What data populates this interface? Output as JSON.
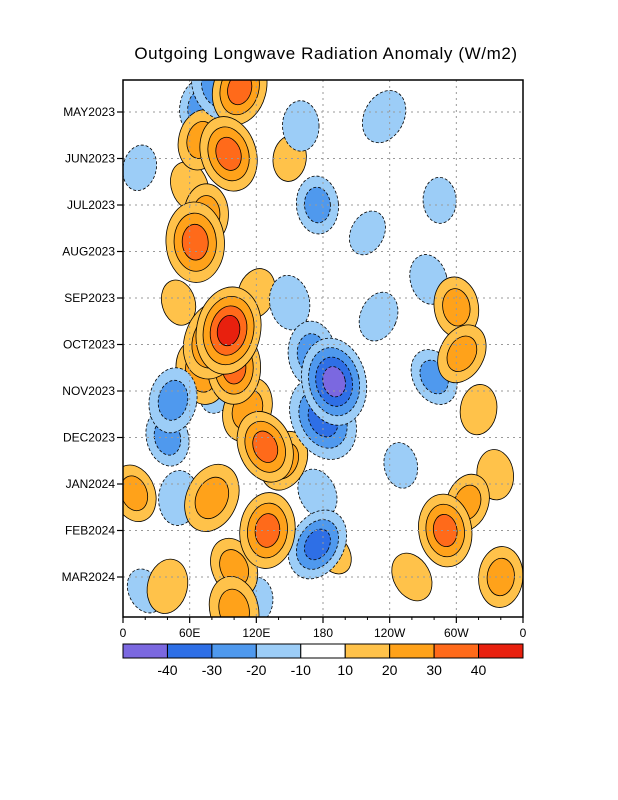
{
  "chart_data": {
    "type": "heatmap",
    "title": "Outgoing Longwave Radiation Anomaly (W/m2)",
    "xlabel": "",
    "ylabel": "",
    "x_tick_labels": [
      "0",
      "60E",
      "120E",
      "180",
      "120W",
      "60W",
      "0"
    ],
    "y_tick_labels": [
      "MAY2023",
      "JUN2023",
      "JUL2023",
      "AUG2023",
      "SEP2023",
      "OCT2023",
      "NOV2023",
      "DEC2023",
      "JAN2024",
      "FEB2024",
      "MAR2024"
    ],
    "grid": true,
    "colorbar": {
      "labels": [
        "-40",
        "-30",
        "-20",
        "-10",
        "10",
        "20",
        "30",
        "40"
      ],
      "colors": [
        "#7b68e0",
        "#2e6fe6",
        "#4f99ee",
        "#9ccdf7",
        "#ffffff",
        "#ffc24a",
        "#ffa21a",
        "#ff6a1a",
        "#e8200e"
      ]
    },
    "anomaly_blobs": [
      {
        "lon": 95,
        "month": 9.7,
        "value": 40
      },
      {
        "lon": 82,
        "month": 9.9,
        "value": 35
      },
      {
        "lon": 100,
        "month": 10.5,
        "value": 30
      },
      {
        "lon": 70,
        "month": 10.6,
        "value": 25
      },
      {
        "lon": 112,
        "month": 11.4,
        "value": 25
      },
      {
        "lon": 128,
        "month": 12.2,
        "value": 30
      },
      {
        "lon": 145,
        "month": 12.5,
        "value": 22
      },
      {
        "lon": 65,
        "month": 7.8,
        "value": 35
      },
      {
        "lon": 75,
        "month": 7.2,
        "value": 22
      },
      {
        "lon": 60,
        "month": 6.6,
        "value": 15
      },
      {
        "lon": 120,
        "month": 8.9,
        "value": 15
      },
      {
        "lon": 80,
        "month": 13.3,
        "value": 28
      },
      {
        "lon": 130,
        "month": 14.0,
        "value": 32
      },
      {
        "lon": 100,
        "month": 14.8,
        "value": 22
      },
      {
        "lon": 105,
        "month": 4.5,
        "value": 30
      },
      {
        "lon": 95,
        "month": 5.9,
        "value": 32
      },
      {
        "lon": 70,
        "month": 5.6,
        "value": 22
      },
      {
        "lon": 150,
        "month": 6.0,
        "value": 12
      },
      {
        "lon": 100,
        "month": 15.7,
        "value": 26
      },
      {
        "lon": 40,
        "month": 15.2,
        "value": 18
      },
      {
        "lon": 10,
        "month": 13.2,
        "value": 20
      },
      {
        "lon": 300,
        "month": 9.2,
        "value": 22
      },
      {
        "lon": 305,
        "month": 10.2,
        "value": 22
      },
      {
        "lon": 290,
        "month": 14.0,
        "value": 30
      },
      {
        "lon": 310,
        "month": 13.4,
        "value": 20
      },
      {
        "lon": 335,
        "month": 12.8,
        "value": 15
      },
      {
        "lon": 340,
        "month": 15.0,
        "value": 22
      },
      {
        "lon": 260,
        "month": 15.0,
        "value": 15
      },
      {
        "lon": 320,
        "month": 11.4,
        "value": 15
      },
      {
        "lon": 50,
        "month": 9.1,
        "value": 12
      },
      {
        "lon": 190,
        "month": 14.5,
        "value": 10
      },
      {
        "lon": 85,
        "month": 11.0,
        "value": -12
      },
      {
        "lon": 180,
        "month": 11.6,
        "value": -38
      },
      {
        "lon": 190,
        "month": 10.8,
        "value": -40
      },
      {
        "lon": 170,
        "month": 10.2,
        "value": -25
      },
      {
        "lon": 150,
        "month": 9.1,
        "value": -18
      },
      {
        "lon": 175,
        "month": 7.0,
        "value": -20
      },
      {
        "lon": 280,
        "month": 10.7,
        "value": -20
      },
      {
        "lon": 275,
        "month": 8.6,
        "value": -15
      },
      {
        "lon": 230,
        "month": 9.4,
        "value": -15
      },
      {
        "lon": 85,
        "month": 4.5,
        "value": -25
      },
      {
        "lon": 70,
        "month": 4.9,
        "value": -20
      },
      {
        "lon": 160,
        "month": 5.3,
        "value": -15
      },
      {
        "lon": 235,
        "month": 5.1,
        "value": -18
      },
      {
        "lon": 285,
        "month": 6.9,
        "value": -12
      },
      {
        "lon": 40,
        "month": 12.0,
        "value": -20
      },
      {
        "lon": 50,
        "month": 13.3,
        "value": -18
      },
      {
        "lon": 175,
        "month": 14.3,
        "value": -30
      },
      {
        "lon": 175,
        "month": 13.2,
        "value": -15
      },
      {
        "lon": 20,
        "month": 15.3,
        "value": -12
      },
      {
        "lon": 45,
        "month": 11.2,
        "value": -25
      },
      {
        "lon": 15,
        "month": 6.2,
        "value": -12
      },
      {
        "lon": 250,
        "month": 12.6,
        "value": -12
      },
      {
        "lon": 220,
        "month": 7.6,
        "value": -12
      },
      {
        "lon": 120,
        "month": 15.5,
        "value": -12
      }
    ]
  }
}
